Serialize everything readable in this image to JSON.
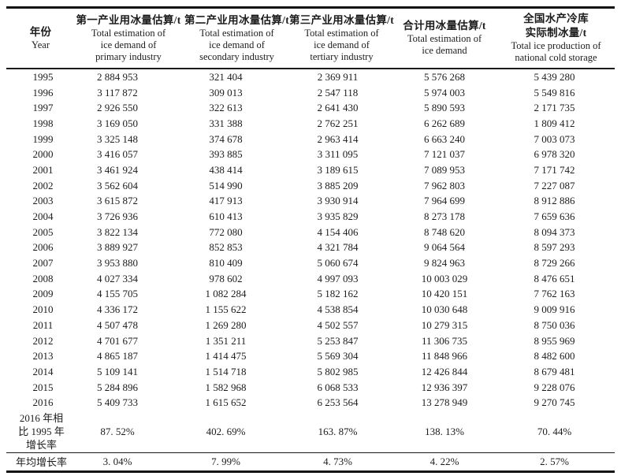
{
  "table": {
    "header": {
      "year": {
        "zh": "年份",
        "en": "Year"
      },
      "cols": [
        {
          "zh": [
            "第一产业用冰量估算/t"
          ],
          "en": [
            "Total estimation of",
            "ice demand of",
            "primary industry"
          ]
        },
        {
          "zh": [
            "第二产业用冰量估算/t"
          ],
          "en": [
            "Total estimation of",
            "ice demand of",
            "secondary industry"
          ]
        },
        {
          "zh": [
            "第三产业用冰量估算/t"
          ],
          "en": [
            "Total estimation of",
            "ice demand of",
            "tertiary industry"
          ]
        },
        {
          "zh": [
            "合计用冰量估算/t"
          ],
          "en": [
            "Total estimation of",
            "ice demand"
          ]
        },
        {
          "zh": [
            "全国水产冷库",
            "实际制冰量/t"
          ],
          "en": [
            "Total ice production of",
            "national cold storage"
          ]
        }
      ]
    },
    "rows": [
      {
        "year": "1995",
        "values": [
          "2 884 953",
          "321 404",
          "2 369 911",
          "5 576 268",
          "5 439 280"
        ]
      },
      {
        "year": "1996",
        "values": [
          "3 117 872",
          "309 013",
          "2 547 118",
          "5 974 003",
          "5 549 816"
        ]
      },
      {
        "year": "1997",
        "values": [
          "2 926 550",
          "322 613",
          "2 641 430",
          "5 890 593",
          "2 171 735"
        ]
      },
      {
        "year": "1998",
        "values": [
          "3 169 050",
          "331 388",
          "2 762 251",
          "6 262 689",
          "1 809 412"
        ]
      },
      {
        "year": "1999",
        "values": [
          "3 325 148",
          "374 678",
          "2 963 414",
          "6 663 240",
          "7 003 073"
        ]
      },
      {
        "year": "2000",
        "values": [
          "3 416 057",
          "393 885",
          "3 311 095",
          "7 121 037",
          "6 978 320"
        ]
      },
      {
        "year": "2001",
        "values": [
          "3 461 924",
          "438 414",
          "3 189 615",
          "7 089 953",
          "7 171 742"
        ]
      },
      {
        "year": "2002",
        "values": [
          "3 562 604",
          "514 990",
          "3 885 209",
          "7 962 803",
          "7 227 087"
        ]
      },
      {
        "year": "2003",
        "values": [
          "3 615 872",
          "417 913",
          "3 930 914",
          "7 964 699",
          "8 912 886"
        ]
      },
      {
        "year": "2004",
        "values": [
          "3 726 936",
          "610 413",
          "3 935 829",
          "8 273 178",
          "7 659 636"
        ]
      },
      {
        "year": "2005",
        "values": [
          "3 822 134",
          "772 080",
          "4 154 406",
          "8 748 620",
          "8 094 373"
        ]
      },
      {
        "year": "2006",
        "values": [
          "3 889 927",
          "852 853",
          "4 321 784",
          "9 064 564",
          "8 597 293"
        ]
      },
      {
        "year": "2007",
        "values": [
          "3 953 880",
          "810 409",
          "5 060 674",
          "9 824 963",
          "8 729 266"
        ]
      },
      {
        "year": "2008",
        "values": [
          "4 027 334",
          "978 602",
          "4 997 093",
          "10 003 029",
          "8 476 651"
        ]
      },
      {
        "year": "2009",
        "values": [
          "4 155 705",
          "1 082 284",
          "5 182 162",
          "10 420 151",
          "7 762 163"
        ]
      },
      {
        "year": "2010",
        "values": [
          "4 336 172",
          "1 155 622",
          "4 538 854",
          "10 030 648",
          "9 009 916"
        ]
      },
      {
        "year": "2011",
        "values": [
          "4 507 478",
          "1 269 280",
          "4 502 557",
          "10 279 315",
          "8 750 036"
        ]
      },
      {
        "year": "2012",
        "values": [
          "4 701 677",
          "1 351 211",
          "5 253 847",
          "11 306 735",
          "8 955 969"
        ]
      },
      {
        "year": "2013",
        "values": [
          "4 865 187",
          "1 414 475",
          "5 569 304",
          "11 848 966",
          "8 482 600"
        ]
      },
      {
        "year": "2014",
        "values": [
          "5 109 141",
          "1 514 718",
          "5 802 985",
          "12 426 844",
          "8 679 481"
        ]
      },
      {
        "year": "2015",
        "values": [
          "5 284 896",
          "1 582 968",
          "6 068 533",
          "12 936 397",
          "9 228 076"
        ]
      },
      {
        "year": "2016",
        "values": [
          "5 409 733",
          "1 615 652",
          "6 253 564",
          "13 278 949",
          "9 270 745"
        ]
      }
    ],
    "summary": [
      {
        "label_lines": [
          "2016 年相",
          "比 1995 年",
          "增长率"
        ],
        "values": [
          "87. 52%",
          "402. 69%",
          "163. 87%",
          "138. 13%",
          "70. 44%"
        ]
      },
      {
        "label_lines": [
          "年均增长率"
        ],
        "values": [
          "3. 04%",
          "7. 99%",
          "4. 73%",
          "4. 22%",
          "2. 57%"
        ]
      }
    ]
  }
}
